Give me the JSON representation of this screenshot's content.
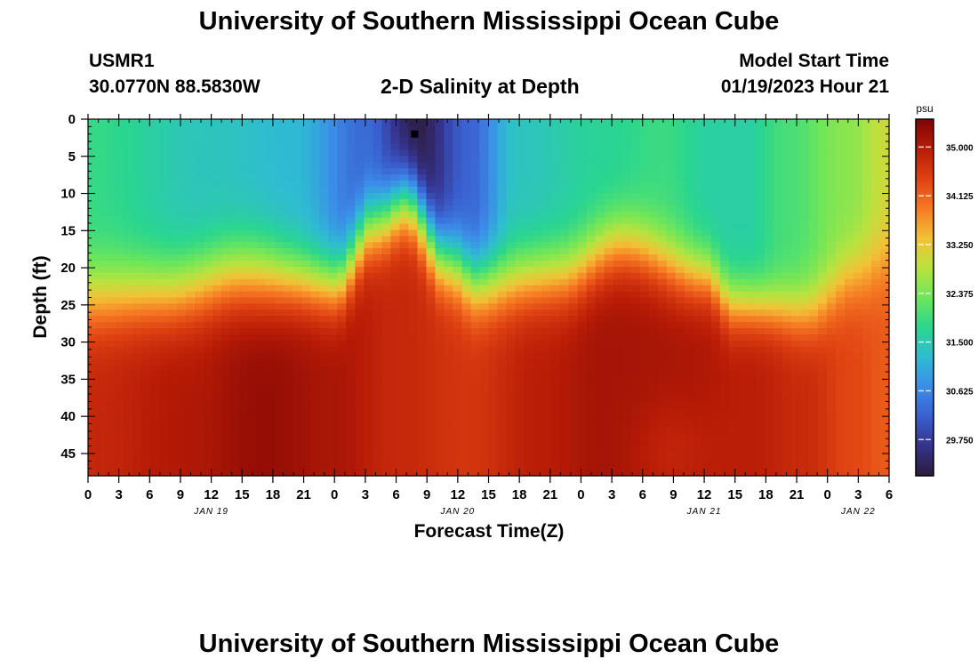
{
  "header": {
    "title": "University of Southern Mississippi Ocean Cube",
    "station_id": "USMR1",
    "coordinates": "30.0770N  88.5830W",
    "plot_title": "2-D Salinity at Depth",
    "model_start_label": "Model Start Time",
    "model_start_value": "01/19/2023 Hour 21"
  },
  "footer": {
    "title": "University of Southern Mississippi Ocean Cube"
  },
  "chart_data": {
    "type": "heatmap",
    "title": "2-D Salinity at Depth",
    "xlabel": "Forecast Time(Z)",
    "ylabel": "Depth (ft)",
    "x_tick_labels": [
      "0",
      "3",
      "6",
      "9",
      "12",
      "15",
      "18",
      "21",
      "0",
      "3",
      "6",
      "9",
      "12",
      "15",
      "18",
      "21",
      "0",
      "3",
      "6",
      "9",
      "12",
      "15",
      "18",
      "21",
      "0",
      "3",
      "6"
    ],
    "date_labels": [
      {
        "label": "JAN 19",
        "tick_index": 4
      },
      {
        "label": "JAN 20",
        "tick_index": 12
      },
      {
        "label": "JAN 21",
        "tick_index": 20
      },
      {
        "label": "JAN 22",
        "tick_index": 25
      }
    ],
    "y_ticks": [
      0,
      5,
      10,
      15,
      20,
      25,
      30,
      35,
      40,
      45
    ],
    "ylim": [
      0,
      48
    ],
    "x_hours_range": [
      0,
      78
    ],
    "colorbar": {
      "unit": "psu",
      "ticks": [
        "35.000",
        "34.125",
        "33.250",
        "32.375",
        "31.500",
        "30.625",
        "29.750"
      ],
      "range": [
        29.1,
        35.5
      ]
    },
    "marker": {
      "hour": 31.8,
      "depth_ft": 2
    },
    "grid": false,
    "colormap": [
      "#2c1a3a",
      "#35338c",
      "#3a5fcf",
      "#3b8de8",
      "#2fbcd2",
      "#2ad68f",
      "#6ee65a",
      "#b9e33e",
      "#f3c136",
      "#f67a23",
      "#df4112",
      "#b81c06",
      "#7f0505"
    ]
  }
}
